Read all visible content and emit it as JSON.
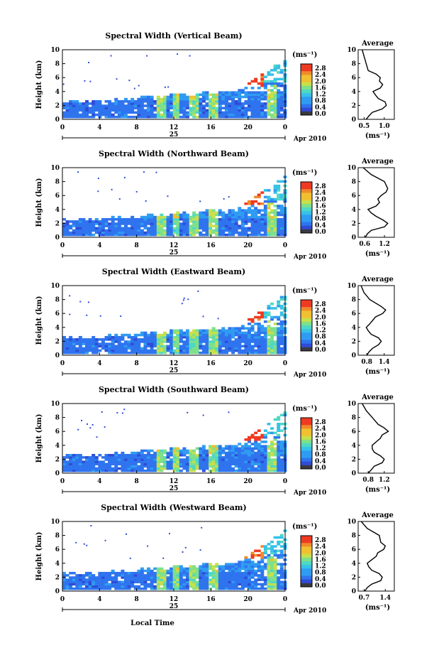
{
  "colors": {
    "scale": [
      "#3a2f8a",
      "#2f4bd6",
      "#2f74ee",
      "#2f9cf2",
      "#37c2e8",
      "#4fd8c4",
      "#7fe08a",
      "#c8e04a",
      "#f0c030",
      "#f08a2a",
      "#ee3a22"
    ],
    "cbar_bottom": "#3a3a40"
  },
  "xaxis": {
    "label": "Local Time",
    "day_label": "25",
    "month_label": "Apr 2010"
  },
  "colorbar": {
    "unit": "(ms⁻¹)",
    "ticks": [
      "2.8",
      "2.4",
      "2.0",
      "1.6",
      "1.2",
      "0.8",
      "0.4",
      "0.0"
    ]
  },
  "avg_title": "Average",
  "avg_unit": "(ms⁻¹)",
  "chart_data": [
    {
      "type": "heatmap",
      "title": "Spectral Width (Vertical Beam)",
      "xlabel": "",
      "ylabel": "Height (km)",
      "x_ticks": [
        "0",
        "4",
        "8",
        "12",
        "16",
        "20",
        "0"
      ],
      "y_ticks": [
        "0",
        "2",
        "4",
        "6",
        "8",
        "10"
      ],
      "xlim": [
        0,
        24
      ],
      "ylim": [
        0,
        10
      ],
      "profile": {
        "title": "Average",
        "xlabel": "(ms⁻¹)",
        "x_ticks": [
          "0.5",
          "1.0"
        ],
        "xlim": [
          0.35,
          1.25
        ],
        "x": [
          0.55,
          0.62,
          0.7,
          0.95,
          1.05,
          1.02,
          0.85,
          0.78,
          0.72,
          0.9,
          0.96,
          0.88,
          0.9,
          0.8,
          0.6,
          0.55,
          0.5,
          0.45
        ],
        "y": [
          0,
          0.5,
          1,
          1.5,
          2,
          2.5,
          3,
          3.5,
          4,
          4.5,
          5,
          5.5,
          6,
          6.5,
          7,
          8,
          9,
          10
        ]
      }
    },
    {
      "type": "heatmap",
      "title": "Spectral Width (Northward Beam)",
      "xlabel": "",
      "ylabel": "Height (km)",
      "x_ticks": [
        "0",
        "4",
        "8",
        "12",
        "16",
        "20",
        "0"
      ],
      "y_ticks": [
        "0",
        "2",
        "4",
        "6",
        "8",
        "10"
      ],
      "xlim": [
        0,
        24
      ],
      "ylim": [
        0,
        10
      ],
      "profile": {
        "title": "Average",
        "xlabel": "(ms⁻¹)",
        "x_ticks": [
          "0.6",
          "1.2"
        ],
        "xlim": [
          0.4,
          1.5
        ],
        "x": [
          0.62,
          0.68,
          0.8,
          1.2,
          1.3,
          1.15,
          0.95,
          0.8,
          0.7,
          0.95,
          1.05,
          1.0,
          1.1,
          1.25,
          1.3,
          1.2,
          0.8,
          0.55
        ],
        "y": [
          0,
          0.5,
          1,
          1.5,
          2,
          2.5,
          3,
          3.5,
          4,
          4.5,
          5,
          5.5,
          6,
          6.5,
          7,
          8,
          9,
          10
        ]
      }
    },
    {
      "type": "heatmap",
      "title": "Spectral Width (Eastward Beam)",
      "xlabel": "",
      "ylabel": "Height (km)",
      "x_ticks": [
        "0",
        "4",
        "8",
        "12",
        "16",
        "20",
        "0"
      ],
      "y_ticks": [
        "0",
        "2",
        "4",
        "6",
        "8",
        "10"
      ],
      "xlim": [
        0,
        24
      ],
      "ylim": [
        0,
        10
      ],
      "profile": {
        "title": "Average",
        "xlabel": "(ms⁻¹)",
        "x_ticks": [
          "0.8",
          "1.4"
        ],
        "xlim": [
          0.5,
          1.75
        ],
        "x": [
          0.8,
          0.88,
          1.0,
          1.2,
          1.3,
          1.2,
          0.95,
          0.85,
          0.78,
          0.9,
          1.0,
          1.1,
          1.35,
          1.45,
          1.3,
          0.9,
          0.7,
          0.6
        ],
        "y": [
          0,
          0.5,
          1,
          1.5,
          2,
          2.5,
          3,
          3.5,
          4,
          4.5,
          5,
          5.5,
          6,
          6.5,
          7,
          8,
          9,
          10
        ]
      }
    },
    {
      "type": "heatmap",
      "title": "Spectral Width (Southward Beam)",
      "xlabel": "",
      "ylabel": "Height (km)",
      "x_ticks": [
        "0",
        "4",
        "8",
        "12",
        "16",
        "20",
        "0"
      ],
      "y_ticks": [
        "0",
        "2",
        "4",
        "6",
        "8",
        "10"
      ],
      "xlim": [
        0,
        24
      ],
      "ylim": [
        0,
        10
      ],
      "profile": {
        "title": "Average",
        "xlabel": "(ms⁻¹)",
        "x_ticks": [
          "0.8",
          "1.2"
        ],
        "xlim": [
          0.55,
          1.45
        ],
        "x": [
          0.8,
          0.88,
          0.95,
          1.15,
          1.2,
          1.1,
          0.95,
          0.9,
          0.9,
          1.0,
          1.1,
          1.15,
          1.3,
          1.2,
          1.05,
          0.9,
          0.75,
          0.65
        ],
        "y": [
          0,
          0.5,
          1,
          1.5,
          2,
          2.5,
          3,
          3.5,
          4,
          4.5,
          5,
          5.5,
          6,
          6.5,
          7,
          8,
          9,
          10
        ]
      }
    },
    {
      "type": "heatmap",
      "title": "Spectral Width (Westward Beam)",
      "xlabel": "Local Time",
      "ylabel": "Height (km)",
      "x_ticks": [
        "0",
        "4",
        "8",
        "12",
        "16",
        "20",
        "0"
      ],
      "y_ticks": [
        "0",
        "2",
        "4",
        "6",
        "8",
        "10"
      ],
      "xlim": [
        0,
        24
      ],
      "ylim": [
        0,
        10
      ],
      "profile": {
        "title": "Average",
        "xlabel": "(ms⁻¹)",
        "x_ticks": [
          "0.7",
          "1.4"
        ],
        "xlim": [
          0.5,
          1.7
        ],
        "x": [
          0.72,
          0.8,
          0.95,
          1.25,
          1.3,
          1.2,
          0.95,
          0.85,
          0.8,
          0.95,
          1.1,
          1.15,
          1.35,
          1.4,
          1.25,
          1.2,
          0.8,
          0.6
        ],
        "y": [
          0,
          0.5,
          1,
          1.5,
          2,
          2.5,
          3,
          3.5,
          4,
          4.5,
          5,
          5.5,
          6,
          6.5,
          7,
          8,
          9,
          10
        ]
      }
    }
  ]
}
